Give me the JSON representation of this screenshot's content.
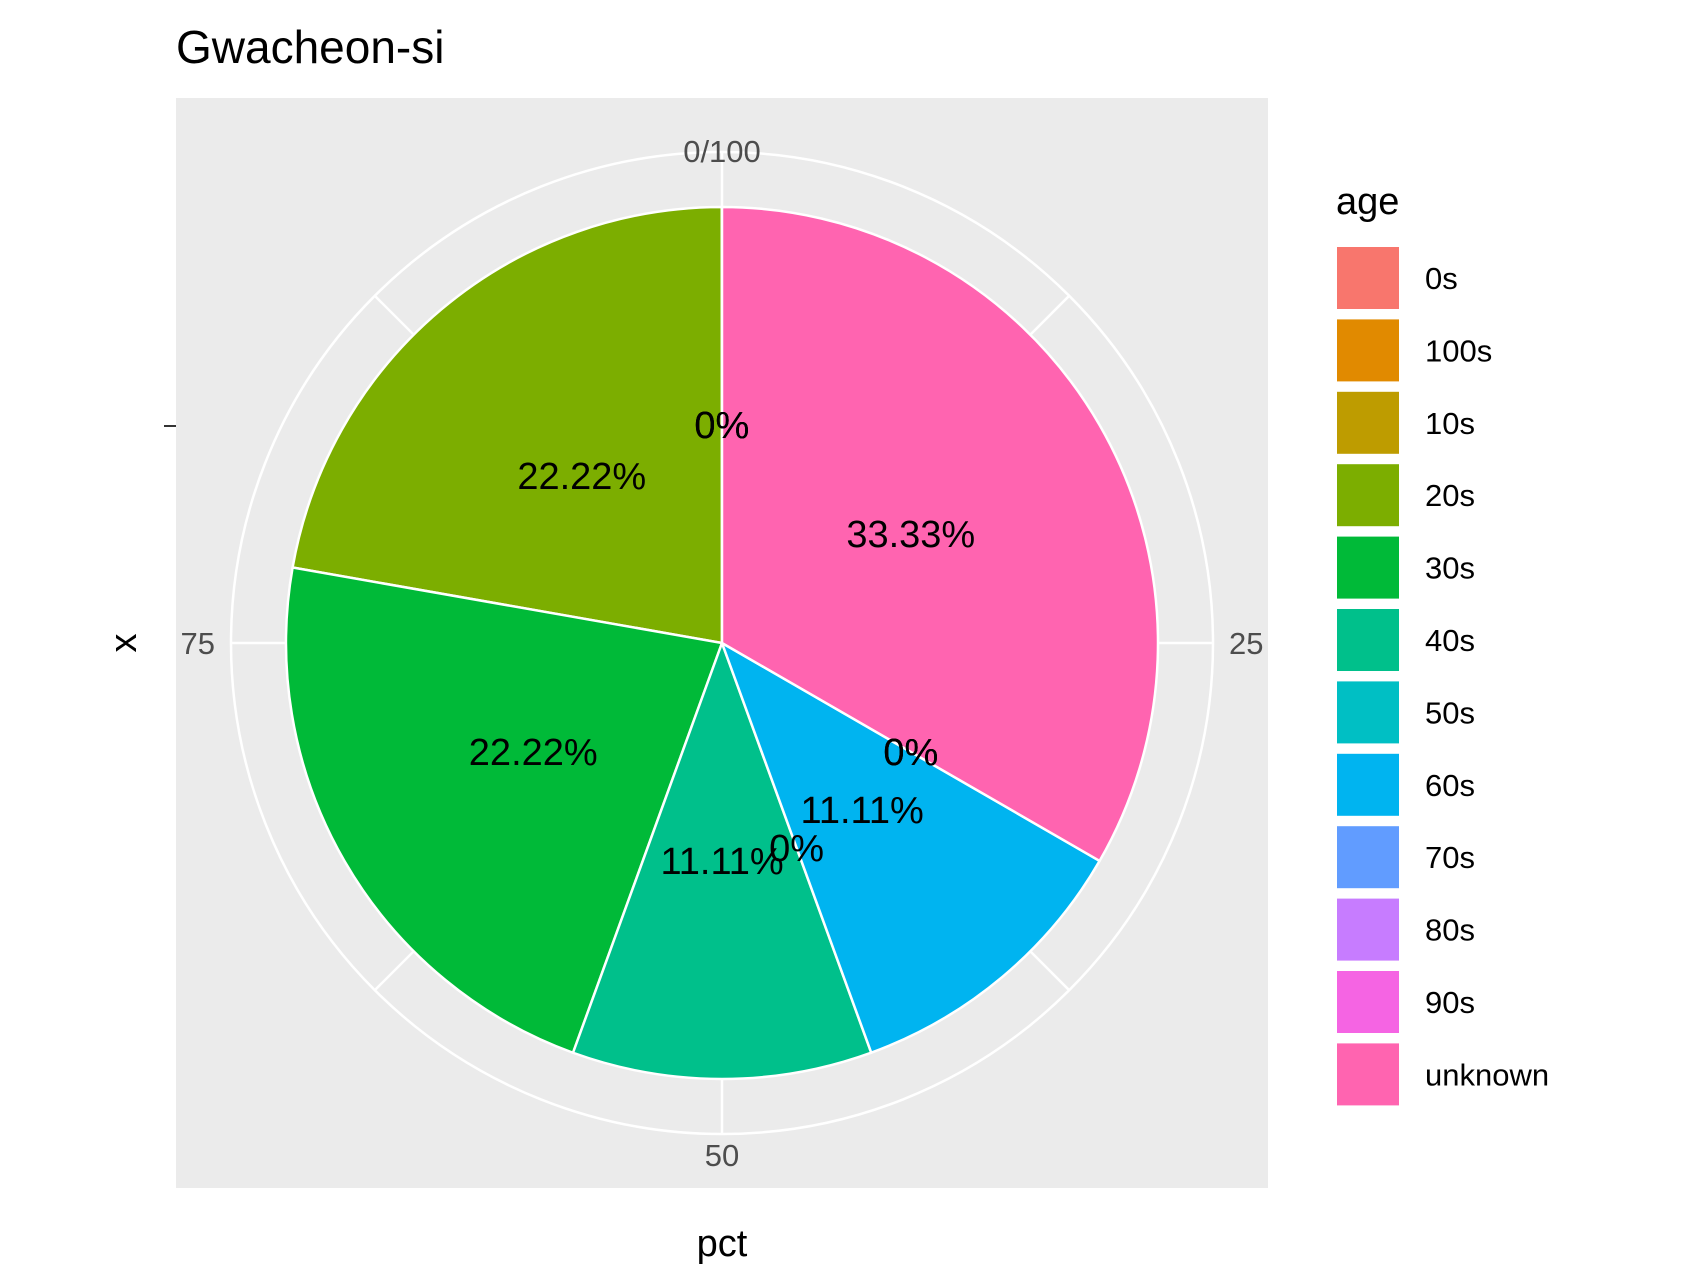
{
  "chart_data": {
    "type": "pie",
    "title": "Gwacheon-si",
    "xlabel": "pct",
    "ylabel": "x",
    "ylim": [
      0,
      100
    ],
    "axis_ticks": [
      "0/100",
      "25",
      "50",
      "75"
    ],
    "legend": {
      "title": "age",
      "placement": "right"
    },
    "slices": [
      {
        "label": "0s",
        "value": 0,
        "text": "0%",
        "color": "#F8766D"
      },
      {
        "label": "100s",
        "value": 0,
        "text": "0%",
        "color": "#E18A00"
      },
      {
        "label": "10s",
        "value": 0,
        "text": "0%",
        "color": "#BE9C00"
      },
      {
        "label": "20s",
        "value": 22.22,
        "text": "22.22%",
        "color": "#7CAE00"
      },
      {
        "label": "30s",
        "value": 22.22,
        "text": "22.22%",
        "color": "#00BA38"
      },
      {
        "label": "40s",
        "value": 11.11,
        "text": "11.11%",
        "color": "#00C08B"
      },
      {
        "label": "50s",
        "value": 0,
        "text": "0%",
        "color": "#00BFC4"
      },
      {
        "label": "60s",
        "value": 11.11,
        "text": "11.11%",
        "color": "#00B4F0"
      },
      {
        "label": "70s",
        "value": 0,
        "text": "0%",
        "color": "#619CFF"
      },
      {
        "label": "80s",
        "value": 0,
        "text": "0%",
        "color": "#C77CFF"
      },
      {
        "label": "90s",
        "value": 0,
        "text": "0%",
        "color": "#F564E3"
      },
      {
        "label": "unknown",
        "value": 33.33,
        "text": "33.33%",
        "color": "#FF64B0"
      }
    ]
  }
}
